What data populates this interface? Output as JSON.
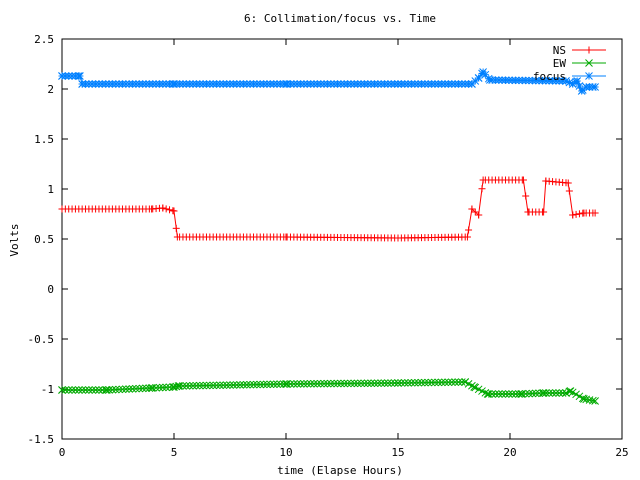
{
  "chart_data": {
    "type": "line",
    "title": "6: Collimation/focus vs. Time",
    "xlabel": "time (Elapse Hours)",
    "ylabel": "Volts",
    "xlim": [
      0,
      25
    ],
    "ylim": [
      -1.5,
      2.5
    ],
    "xticks": [
      0,
      5,
      10,
      15,
      20,
      25
    ],
    "yticks": [
      -1.5,
      -1,
      -0.5,
      0,
      0.5,
      1,
      1.5,
      2,
      2.5
    ],
    "xtick_labels": [
      "0",
      "5",
      "10",
      "15",
      "20",
      "25"
    ],
    "ytick_labels": [
      "-1.5",
      "-1",
      "-0.5",
      "0",
      "0.5",
      "1",
      "1.5",
      "2",
      "2.5"
    ],
    "grid": false,
    "legend_position": "top-right",
    "series": [
      {
        "name": "NS",
        "color": "#ff0000",
        "marker": "plus",
        "points": [
          [
            0,
            0.8
          ],
          [
            4.0,
            0.8
          ],
          [
            4.5,
            0.81
          ],
          [
            5.0,
            0.78
          ],
          [
            5.15,
            0.52
          ],
          [
            10,
            0.52
          ],
          [
            15,
            0.51
          ],
          [
            18.1,
            0.52
          ],
          [
            18.3,
            0.8
          ],
          [
            18.6,
            0.74
          ],
          [
            18.8,
            1.09
          ],
          [
            20.6,
            1.09
          ],
          [
            20.8,
            0.77
          ],
          [
            21.5,
            0.77
          ],
          [
            21.6,
            1.08
          ],
          [
            22.6,
            1.06
          ],
          [
            22.8,
            0.74
          ],
          [
            23.3,
            0.76
          ],
          [
            23.8,
            0.76
          ]
        ]
      },
      {
        "name": "EW",
        "color": "#00aa00",
        "marker": "cross",
        "points": [
          [
            0,
            -1.01
          ],
          [
            2.0,
            -1.01
          ],
          [
            4.0,
            -0.99
          ],
          [
            5.0,
            -0.98
          ],
          [
            5.2,
            -0.97
          ],
          [
            10,
            -0.95
          ],
          [
            15,
            -0.94
          ],
          [
            18.0,
            -0.93
          ],
          [
            18.4,
            -0.98
          ],
          [
            19.0,
            -1.05
          ],
          [
            20.5,
            -1.05
          ],
          [
            21.5,
            -1.04
          ],
          [
            22.5,
            -1.04
          ],
          [
            22.7,
            -1.02
          ],
          [
            23.3,
            -1.1
          ],
          [
            23.8,
            -1.12
          ]
        ]
      },
      {
        "name": "focus",
        "color": "#0080ff",
        "marker": "star",
        "points": [
          [
            0,
            2.13
          ],
          [
            0.8,
            2.13
          ],
          [
            0.9,
            2.05
          ],
          [
            5,
            2.05
          ],
          [
            10,
            2.05
          ],
          [
            15,
            2.05
          ],
          [
            18.3,
            2.05
          ],
          [
            18.6,
            2.11
          ],
          [
            18.8,
            2.17
          ],
          [
            19.1,
            2.09
          ],
          [
            22.5,
            2.08
          ],
          [
            22.8,
            2.05
          ],
          [
            23.0,
            2.08
          ],
          [
            23.2,
            1.98
          ],
          [
            23.4,
            2.02
          ],
          [
            23.8,
            2.02
          ]
        ]
      }
    ]
  }
}
